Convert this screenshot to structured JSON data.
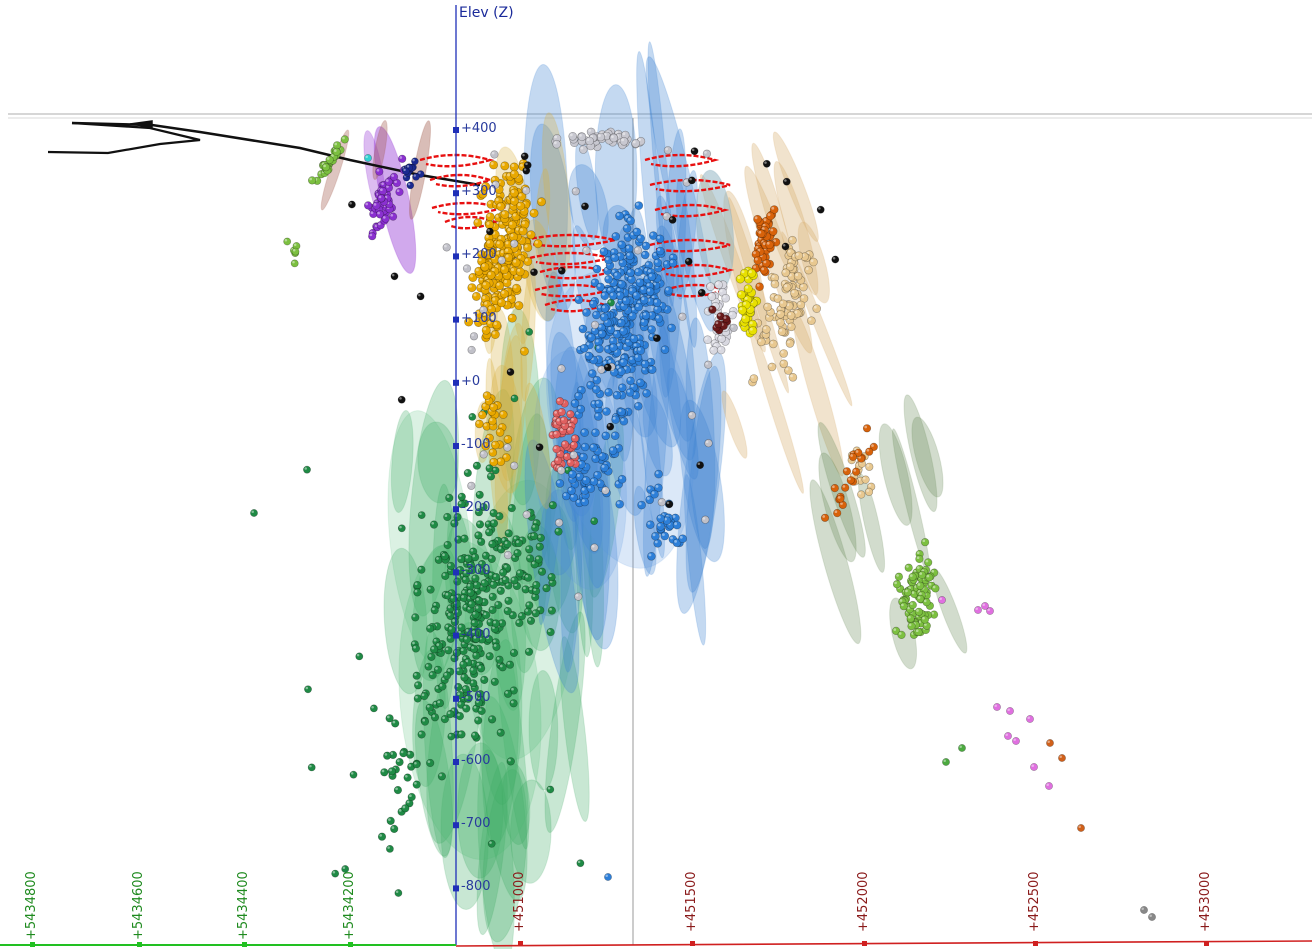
{
  "view": {
    "background": "#ffffff",
    "z_axis_label": "Elev (Z)",
    "z_axis_color": "#1f2fb8"
  },
  "z_axis_ticks": [
    "+400",
    "+300",
    "+200",
    "+100",
    "+0",
    "-100",
    "-200",
    "-300",
    "-400",
    "-500",
    "-600",
    "-700",
    "-800"
  ],
  "y_axis_ticks": [
    "+5434800",
    "+5434600",
    "+5434400",
    "+5434200"
  ],
  "x_axis_ticks": [
    "+451000",
    "+451500",
    "+452000",
    "+452500",
    "+453000"
  ],
  "colors": {
    "y_axis": "#22c022",
    "x_axis": "#d02020",
    "gold": "#e0a800",
    "blue": "#2f7fd8",
    "green": "#1e7a3c",
    "light_green": "#7cc040",
    "purple": "#8a2fd0",
    "orange": "#d8620a",
    "tan": "#e8c890",
    "yellow": "#e8e000",
    "red_trace": "#e81010",
    "grey": "#b8b8c0",
    "black": "#111111",
    "pink": "#e070e0",
    "salmon": "#e06060"
  }
}
